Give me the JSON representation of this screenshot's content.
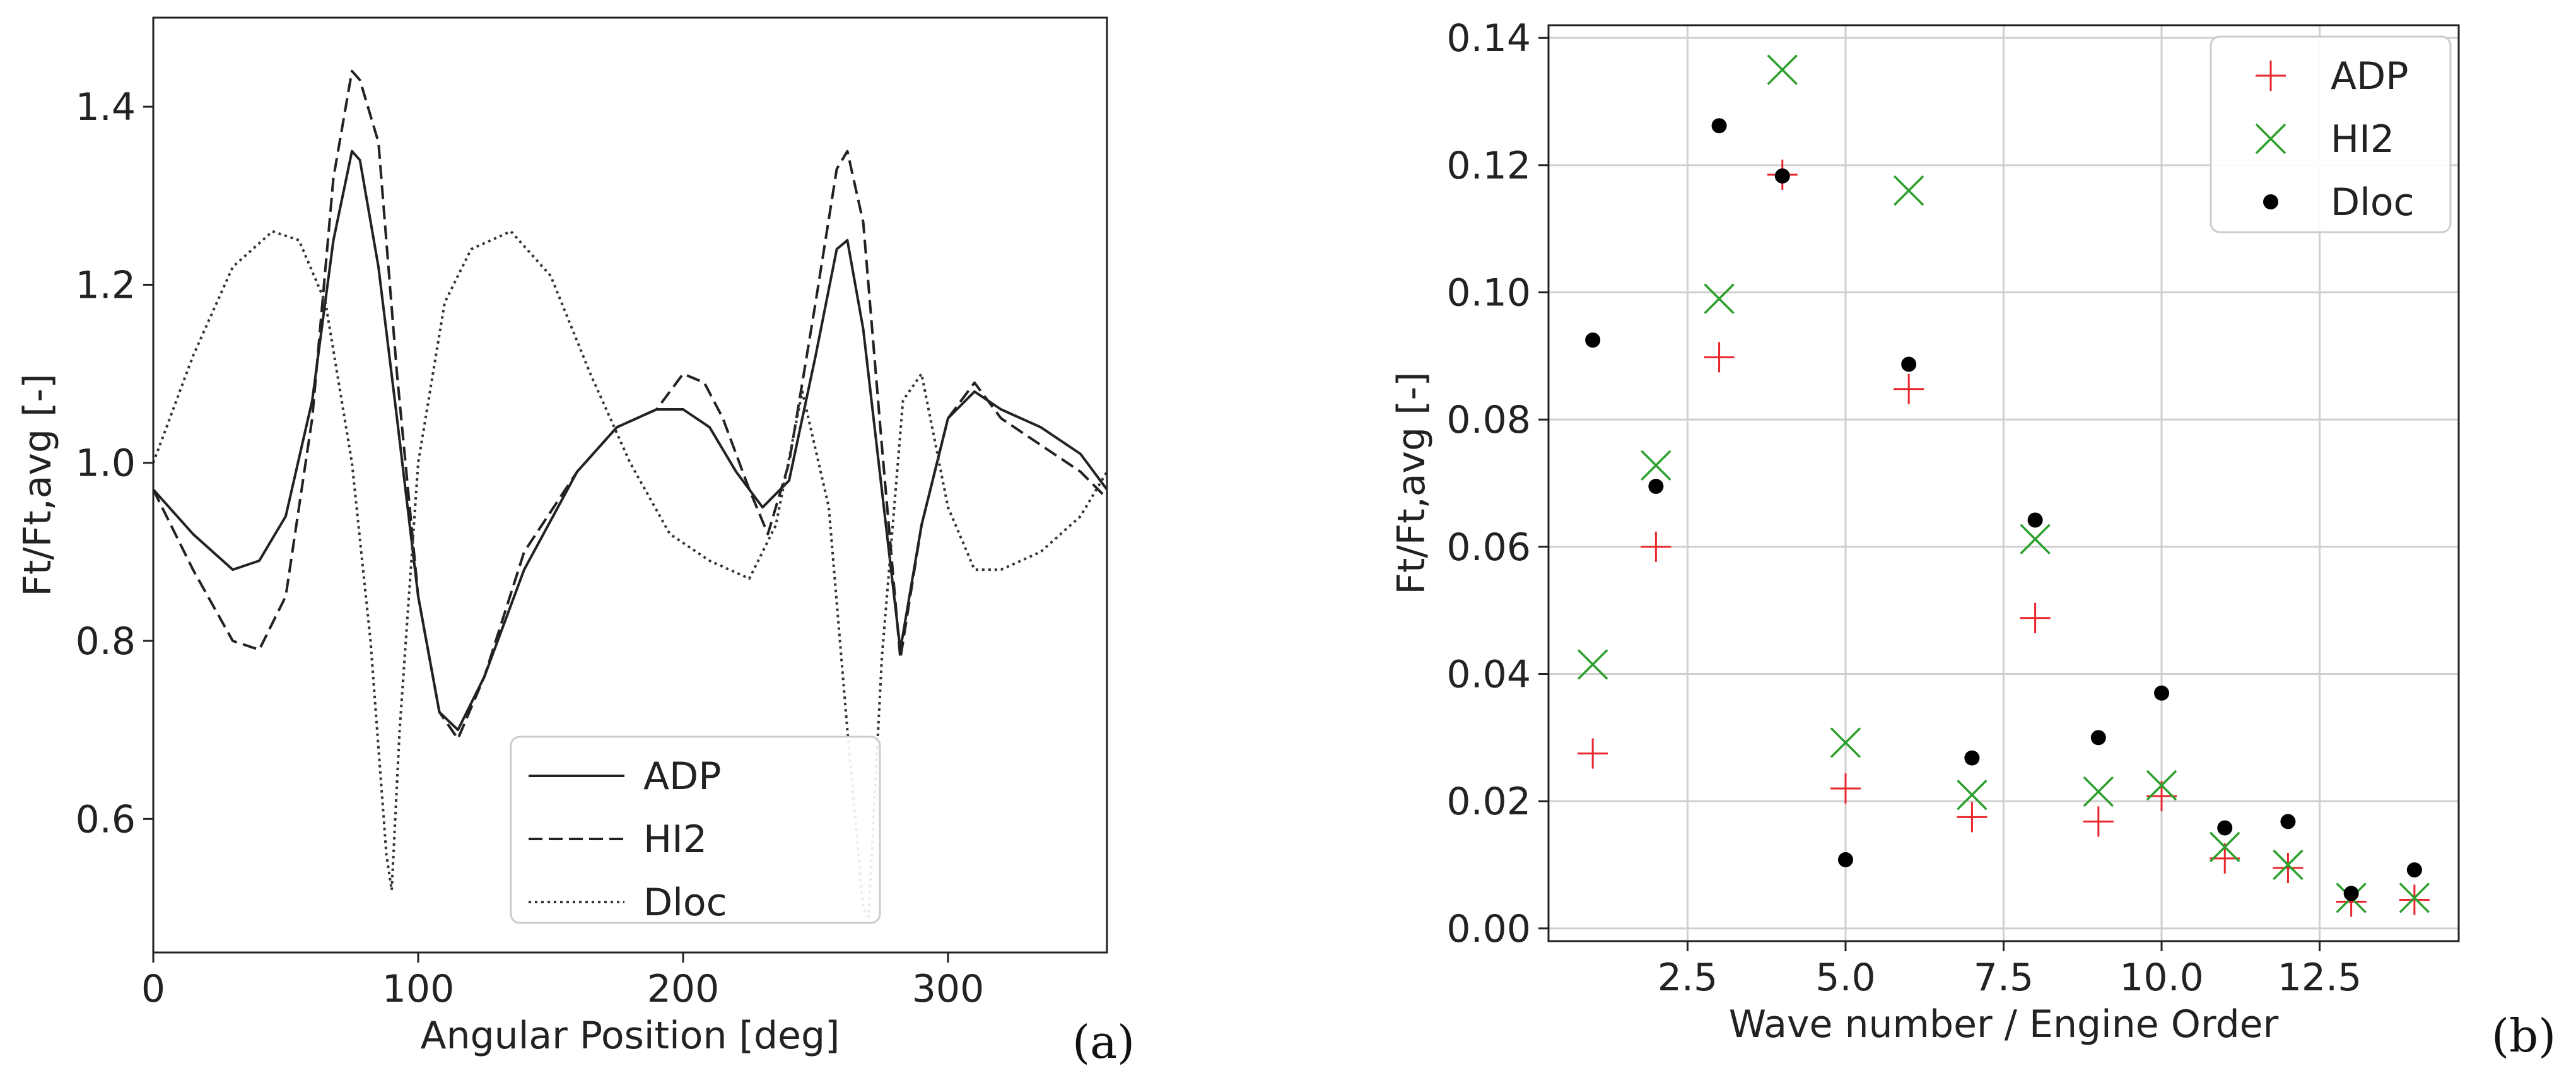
{
  "chart_data": [
    {
      "type": "line",
      "panel_label": "(a)",
      "title": "",
      "xlabel": "Angular Position [deg]",
      "ylabel": "Ft/Ft,avg [-]",
      "xlim": [
        0,
        360
      ],
      "ylim": [
        0.45,
        1.5
      ],
      "xticks": [
        0,
        100,
        200,
        300
      ],
      "yticks": [
        0.6,
        0.8,
        1.0,
        1.2,
        1.4
      ],
      "xtick_labels": [
        "0",
        "100",
        "200",
        "300"
      ],
      "ytick_labels": [
        "0.6",
        "0.8",
        "1.0",
        "1.2",
        "1.4"
      ],
      "grid": false,
      "legend_position": "bottom-center",
      "series": [
        {
          "name": "ADP",
          "style": "solid",
          "color": "#222222",
          "x": [
            0,
            15,
            30,
            40,
            50,
            60,
            68,
            75,
            78,
            85,
            92,
            100,
            108,
            115,
            125,
            140,
            160,
            175,
            190,
            200,
            210,
            220,
            230,
            240,
            250,
            258,
            262,
            268,
            275,
            282,
            290,
            300,
            310,
            320,
            335,
            350,
            360
          ],
          "y": [
            0.97,
            0.92,
            0.88,
            0.89,
            0.94,
            1.07,
            1.25,
            1.35,
            1.34,
            1.22,
            1.05,
            0.85,
            0.72,
            0.7,
            0.76,
            0.88,
            0.99,
            1.04,
            1.06,
            1.06,
            1.04,
            0.99,
            0.95,
            0.98,
            1.12,
            1.24,
            1.25,
            1.15,
            0.97,
            0.79,
            0.93,
            1.05,
            1.08,
            1.06,
            1.04,
            1.01,
            0.97
          ]
        },
        {
          "name": "HI2",
          "style": "dashed",
          "color": "#222222",
          "x": [
            0,
            15,
            30,
            40,
            50,
            60,
            68,
            75,
            78,
            85,
            92,
            100,
            108,
            115,
            125,
            140,
            160,
            175,
            190,
            200,
            208,
            215,
            225,
            232,
            240,
            250,
            258,
            262,
            268,
            275,
            282,
            290,
            300,
            310,
            320,
            335,
            350,
            360
          ],
          "y": [
            0.97,
            0.88,
            0.8,
            0.79,
            0.85,
            1.05,
            1.32,
            1.44,
            1.43,
            1.36,
            1.1,
            0.85,
            0.72,
            0.69,
            0.76,
            0.9,
            0.99,
            1.04,
            1.06,
            1.1,
            1.09,
            1.05,
            0.97,
            0.92,
            1.0,
            1.18,
            1.33,
            1.35,
            1.27,
            1.02,
            0.78,
            0.93,
            1.05,
            1.09,
            1.05,
            1.02,
            0.99,
            0.96
          ]
        },
        {
          "name": "Dloc",
          "style": "dotted",
          "color": "#333333",
          "x": [
            0,
            15,
            30,
            45,
            55,
            65,
            75,
            82,
            88,
            90,
            93,
            100,
            110,
            120,
            135,
            150,
            165,
            180,
            195,
            210,
            225,
            235,
            245,
            255,
            262,
            268,
            270,
            275,
            283,
            290,
            300,
            310,
            320,
            335,
            350,
            360
          ],
          "y": [
            1.0,
            1.12,
            1.22,
            1.26,
            1.25,
            1.18,
            1.0,
            0.8,
            0.56,
            0.52,
            0.7,
            1.0,
            1.18,
            1.24,
            1.26,
            1.21,
            1.1,
            1.0,
            0.92,
            0.89,
            0.87,
            0.93,
            1.08,
            0.95,
            0.7,
            0.5,
            0.49,
            0.78,
            1.07,
            1.1,
            0.95,
            0.88,
            0.88,
            0.9,
            0.94,
            0.99
          ]
        }
      ]
    },
    {
      "type": "scatter",
      "panel_label": "(b)",
      "title": "",
      "xlabel": "Wave number / Engine Order",
      "ylabel": "Ft/Ft,avg [-]",
      "xlim": [
        0.3,
        14.7
      ],
      "ylim": [
        -0.002,
        0.142
      ],
      "xticks": [
        2.5,
        5.0,
        7.5,
        10.0,
        12.5
      ],
      "yticks": [
        0.0,
        0.02,
        0.04,
        0.06,
        0.08,
        0.1,
        0.12,
        0.14
      ],
      "xtick_labels": [
        "2.5",
        "5.0",
        "7.5",
        "10.0",
        "12.5"
      ],
      "ytick_labels": [
        "0.00",
        "0.02",
        "0.04",
        "0.06",
        "0.08",
        "0.10",
        "0.12",
        "0.14"
      ],
      "grid": true,
      "legend_position": "top-right",
      "series": [
        {
          "name": "ADP",
          "marker": "plus",
          "color": "#e8262b",
          "x": [
            1,
            2,
            3,
            4,
            5,
            6,
            7,
            8,
            9,
            10,
            11,
            12,
            13,
            14
          ],
          "y": [
            0.0275,
            0.06,
            0.0898,
            0.1185,
            0.022,
            0.0848,
            0.0175,
            0.0488,
            0.0168,
            0.0208,
            0.011,
            0.0095,
            0.0042,
            0.0045
          ]
        },
        {
          "name": "HI2",
          "marker": "x",
          "color": "#2ca02c",
          "x": [
            1,
            2,
            3,
            4,
            5,
            6,
            7,
            8,
            9,
            10,
            11,
            12,
            13,
            14
          ],
          "y": [
            0.0415,
            0.0728,
            0.099,
            0.135,
            0.0292,
            0.116,
            0.021,
            0.0612,
            0.0215,
            0.0225,
            0.0128,
            0.01,
            0.0048,
            0.0048
          ]
        },
        {
          "name": "Dloc",
          "marker": "dot",
          "color": "#000000",
          "x": [
            1,
            2,
            3,
            4,
            5,
            6,
            7,
            8,
            9,
            10,
            11,
            12,
            13,
            14
          ],
          "y": [
            0.0925,
            0.0695,
            0.1262,
            0.1183,
            0.0108,
            0.0887,
            0.0268,
            0.0642,
            0.03,
            0.037,
            0.0158,
            0.0168,
            0.0055,
            0.0092
          ]
        }
      ]
    }
  ]
}
